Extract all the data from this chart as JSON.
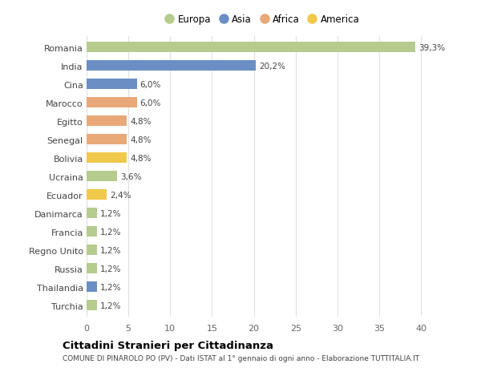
{
  "categories": [
    "Turchia",
    "Thailandia",
    "Russia",
    "Regno Unito",
    "Francia",
    "Danimarca",
    "Ecuador",
    "Ucraina",
    "Bolivia",
    "Senegal",
    "Egitto",
    "Marocco",
    "Cina",
    "India",
    "Romania"
  ],
  "values": [
    1.2,
    1.2,
    1.2,
    1.2,
    1.2,
    1.2,
    2.4,
    3.6,
    4.8,
    4.8,
    4.8,
    6.0,
    6.0,
    20.2,
    39.3
  ],
  "colors": [
    "#b5cc8e",
    "#6b8fc4",
    "#b5cc8e",
    "#b5cc8e",
    "#b5cc8e",
    "#b5cc8e",
    "#f0c84a",
    "#b5cc8e",
    "#f0c84a",
    "#e8a878",
    "#e8a878",
    "#e8a878",
    "#6b8fc4",
    "#6b8fc4",
    "#b5cc8e"
  ],
  "labels": [
    "1,2%",
    "1,2%",
    "1,2%",
    "1,2%",
    "1,2%",
    "1,2%",
    "2,4%",
    "3,6%",
    "4,8%",
    "4,8%",
    "4,8%",
    "6,0%",
    "6,0%",
    "20,2%",
    "39,3%"
  ],
  "legend": [
    {
      "label": "Europa",
      "color": "#b5cc8e"
    },
    {
      "label": "Asia",
      "color": "#6b8fc4"
    },
    {
      "label": "Africa",
      "color": "#e8a878"
    },
    {
      "label": "America",
      "color": "#f0c84a"
    }
  ],
  "title": "Cittadini Stranieri per Cittadinanza",
  "subtitle": "COMUNE DI PINAROLO PO (PV) - Dati ISTAT al 1° gennaio di ogni anno - Elaborazione TUTTITALIA.IT",
  "xlim": [
    0,
    42
  ],
  "background_color": "#ffffff",
  "plot_background": "#ffffff",
  "grid_color": "#e0e0e0"
}
